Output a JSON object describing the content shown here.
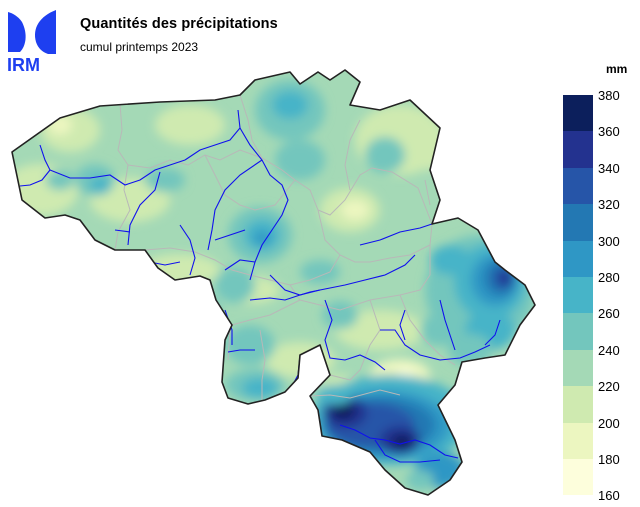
{
  "header": {
    "title": "Quantités des précipitations",
    "subtitle": "cumul printemps 2023"
  },
  "logo": {
    "text": "IRM",
    "color": "#1e3ff0"
  },
  "legend": {
    "unit": "mm",
    "ticks": [
      "380",
      "360",
      "340",
      "320",
      "300",
      "280",
      "260",
      "240",
      "220",
      "200",
      "180",
      "160"
    ],
    "colors": [
      "#0c1f5c",
      "#23328f",
      "#2655a8",
      "#2378b3",
      "#2f97c5",
      "#47b4c8",
      "#73c6bd",
      "#a4d9b6",
      "#cfeab0",
      "#ecf6c0",
      "#fdfedc"
    ]
  },
  "map": {
    "base_color": "#a4d9b6",
    "border_color": "#222222",
    "province_color": "#b8b8b8",
    "river_color": "#1010ee"
  }
}
